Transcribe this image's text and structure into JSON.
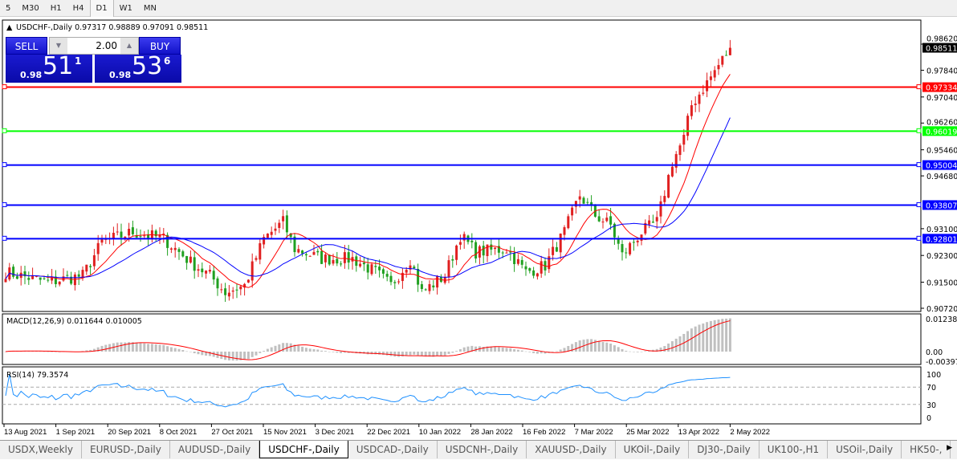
{
  "timeframes": [
    "5",
    "M30",
    "H1",
    "H4",
    "D1",
    "W1",
    "MN"
  ],
  "active_timeframe": "D1",
  "chart": {
    "header": "USDCHF-,Daily",
    "ohlc": "0.97317 0.98889 0.97091 0.98511"
  },
  "trade_panel": {
    "sell_label": "SELL",
    "buy_label": "BUY",
    "lot": "2.00",
    "sell_prefix": "0.98",
    "sell_big": "51",
    "sell_sup": "1",
    "buy_prefix": "0.98",
    "buy_big": "53",
    "buy_sup": "6"
  },
  "price_axis": [
    "0.98620",
    "0.97840",
    "0.97040",
    "0.96260",
    "0.95460",
    "0.94680",
    "0.93100",
    "0.92300",
    "0.91500",
    "0.90720"
  ],
  "current_price": {
    "label": "0.98511",
    "color": "#000000"
  },
  "hlines": [
    {
      "label": "0.97334",
      "value": 0.97334,
      "color": "#ff0000"
    },
    {
      "label": "0.96019",
      "value": 0.96019,
      "color": "#00ff00"
    },
    {
      "label": "0.95004",
      "value": 0.95004,
      "color": "#0000ff"
    },
    {
      "label": "0.93807",
      "value": 0.93807,
      "color": "#0000ff"
    },
    {
      "label": "0.92801",
      "value": 0.92801,
      "color": "#0000ff"
    }
  ],
  "macd": {
    "title": "MACD(12,26,9) 0.011644 0.010005",
    "axis": [
      "0.012387",
      "0.00",
      "-0.00397"
    ]
  },
  "rsi": {
    "title": "RSI(14) 79.3574",
    "axis": [
      "100",
      "70",
      "30",
      "0"
    ]
  },
  "time_axis": [
    "13 Aug 2021",
    "1 Sep 2021",
    "20 Sep 2021",
    "8 Oct 2021",
    "27 Oct 2021",
    "15 Nov 2021",
    "3 Dec 2021",
    "22 Dec 2021",
    "10 Jan 2022",
    "28 Jan 2022",
    "16 Feb 2022",
    "7 Mar 2022",
    "25 Mar 2022",
    "13 Apr 2022",
    "2 May 2022"
  ],
  "tabs": [
    "USDX,Weekly",
    "EURUSD-,Daily",
    "AUDUSD-,Daily",
    "USDCHF-,Daily",
    "USDCAD-,Daily",
    "USDCNH-,Daily",
    "XAUUSD-,Daily",
    "UKOil-,Daily",
    "DJ30-,Daily",
    "UK100-,H1",
    "USOil-,Daily",
    "HK50-,"
  ],
  "active_tab": "USDCHF-,Daily",
  "chart_data": {
    "type": "candlestick",
    "symbol": "USDCHF-",
    "period": "Daily",
    "ylim": [
      0.9072,
      0.9862
    ],
    "key_closes": [
      [
        0,
        0.918
      ],
      [
        11,
        0.915
      ],
      [
        20,
        0.917
      ],
      [
        25,
        0.927
      ],
      [
        33,
        0.93
      ],
      [
        41,
        0.928
      ],
      [
        48,
        0.921
      ],
      [
        53,
        0.917
      ],
      [
        57,
        0.912
      ],
      [
        62,
        0.914
      ],
      [
        67,
        0.928
      ],
      [
        72,
        0.933
      ],
      [
        75,
        0.925
      ],
      [
        82,
        0.922
      ],
      [
        90,
        0.922
      ],
      [
        96,
        0.918
      ],
      [
        100,
        0.914
      ],
      [
        105,
        0.922
      ],
      [
        108,
        0.912
      ],
      [
        114,
        0.917
      ],
      [
        118,
        0.929
      ],
      [
        122,
        0.924
      ],
      [
        130,
        0.925
      ],
      [
        135,
        0.918
      ],
      [
        140,
        0.92
      ],
      [
        145,
        0.93
      ],
      [
        149,
        0.941
      ],
      [
        153,
        0.935
      ],
      [
        157,
        0.932
      ],
      [
        160,
        0.923
      ],
      [
        165,
        0.93
      ],
      [
        169,
        0.933
      ],
      [
        173,
        0.951
      ],
      [
        176,
        0.958
      ],
      [
        178,
        0.968
      ],
      [
        181,
        0.973
      ],
      [
        188,
        0.98511
      ]
    ],
    "moving_averages": [
      {
        "color": "#ff0000"
      },
      {
        "color": "#0000ff"
      }
    ]
  }
}
